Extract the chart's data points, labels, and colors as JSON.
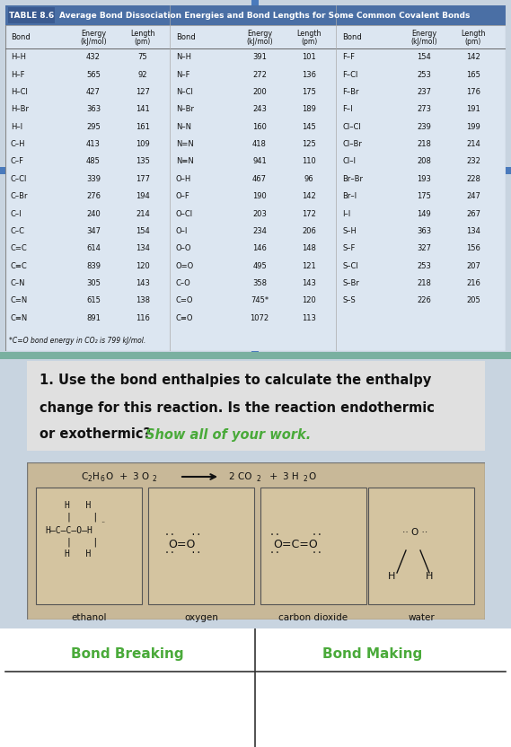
{
  "col1_bonds": [
    "H–H",
    "H–F",
    "H–Cl",
    "H–Br",
    "H–I",
    "C–H",
    "C–F",
    "C–Cl",
    "C–Br",
    "C–I",
    "C–C",
    "C=C",
    "C≡C",
    "C–N",
    "C=N",
    "C≡N"
  ],
  "col1_energy": [
    "432",
    "565",
    "427",
    "363",
    "295",
    "413",
    "485",
    "339",
    "276",
    "240",
    "347",
    "614",
    "839",
    "305",
    "615",
    "891"
  ],
  "col1_length": [
    "75",
    "92",
    "127",
    "141",
    "161",
    "109",
    "135",
    "177",
    "194",
    "214",
    "154",
    "134",
    "120",
    "143",
    "138",
    "116"
  ],
  "col2_bonds": [
    "N–H",
    "N–F",
    "N–Cl",
    "N–Br",
    "N–N",
    "N=N",
    "N≡N",
    "O–H",
    "O–F",
    "O–Cl",
    "O–I",
    "O–O",
    "O=O",
    "C–O",
    "C=O",
    "C≡O"
  ],
  "col2_energy": [
    "391",
    "272",
    "200",
    "243",
    "160",
    "418",
    "941",
    "467",
    "190",
    "203",
    "234",
    "146",
    "495",
    "358",
    "745*",
    "1072"
  ],
  "col2_length": [
    "101",
    "136",
    "175",
    "189",
    "145",
    "125",
    "110",
    "96",
    "142",
    "172",
    "206",
    "148",
    "121",
    "143",
    "120",
    "113"
  ],
  "col3_bonds": [
    "F–F",
    "F–Cl",
    "F–Br",
    "F–I",
    "Cl–Cl",
    "Cl–Br",
    "Cl–I",
    "Br–Br",
    "Br–I",
    "I–I",
    "S–H",
    "S–F",
    "S–Cl",
    "S–Br",
    "S–S"
  ],
  "col3_energy": [
    "154",
    "253",
    "237",
    "273",
    "239",
    "218",
    "208",
    "193",
    "175",
    "149",
    "363",
    "327",
    "253",
    "218",
    "226"
  ],
  "col3_length": [
    "142",
    "165",
    "176",
    "191",
    "199",
    "214",
    "232",
    "228",
    "247",
    "267",
    "134",
    "156",
    "207",
    "216",
    "205"
  ],
  "table_title": "Average Bond Dissociation Energies and Bond Lengths for Some Common Covalent Bonds",
  "table_label": "TABLE 8.6",
  "footnote": "*C=O bond energy in CO₂ is 799 kJ/mol.",
  "header_bg": "#4a6fa5",
  "table_bg": "#dce6f1",
  "header_text": "#ffffff",
  "q_text1": "1. Use the bond enthalpies to calculate the enthalpy",
  "q_text2": "change for this reaction. Is the reaction endothermic",
  "q_text3": "or exothermic?",
  "q_green": "Show all of your work.",
  "green_color": "#4aaa3a",
  "bond_breaking": "Bond Breaking",
  "bond_making": "Bond Making",
  "bg_page": "#c8d4e0",
  "bg_question": "#e0e0e0",
  "bg_rxn": "#c8b898",
  "bg_mol_box": "#d4c4a0",
  "bg_white": "#ffffff"
}
